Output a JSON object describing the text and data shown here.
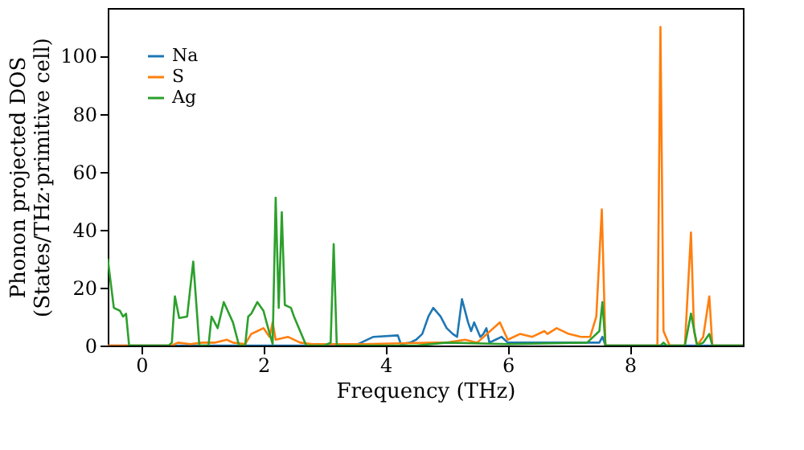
{
  "chart_data": {
    "type": "line",
    "xlabel": "Frequency (THz)",
    "ylabel": "Phonon projected DOS\n(States/THz·primitive cell)",
    "xlim": [
      -0.55,
      9.85
    ],
    "ylim": [
      0,
      116.5
    ],
    "xticks": [
      0,
      2,
      4,
      6,
      8
    ],
    "yticks": [
      0,
      20,
      40,
      60,
      80,
      100
    ],
    "grid": false,
    "legend": "top left",
    "marker": "none",
    "line_style": "solid",
    "series": [
      {
        "name": "Na",
        "color": "#1f77b4",
        "x": [
          -0.55,
          3.5,
          3.6,
          3.8,
          4.2,
          4.25,
          4.4,
          4.5,
          4.6,
          4.7,
          4.78,
          4.9,
          5.0,
          5.1,
          5.17,
          5.25,
          5.35,
          5.4,
          5.45,
          5.55,
          5.6,
          5.65,
          5.7,
          5.8,
          5.9,
          6.0,
          7.4,
          7.5,
          7.55,
          7.6,
          9.85
        ],
        "values": [
          0,
          0,
          1,
          3,
          3.5,
          0.5,
          1,
          2,
          4,
          10,
          13,
          10,
          6,
          4,
          3,
          16,
          8,
          5,
          8,
          3,
          4,
          6,
          1,
          2,
          3,
          1,
          1,
          1,
          3,
          0,
          0
        ]
      },
      {
        "name": "S",
        "color": "#ff7f0e",
        "x": [
          -0.55,
          0.5,
          0.6,
          0.8,
          1.0,
          1.2,
          1.4,
          1.5,
          1.7,
          1.8,
          1.9,
          2.0,
          2.1,
          2.15,
          2.2,
          2.4,
          2.6,
          2.8,
          3.6,
          4.8,
          5.0,
          5.3,
          5.5,
          5.87,
          6.0,
          6.2,
          6.4,
          6.6,
          6.65,
          6.8,
          7.0,
          7.2,
          7.35,
          7.45,
          7.54,
          7.6,
          8.45,
          8.5,
          8.55,
          8.65,
          8.9,
          9.0,
          9.05,
          9.1,
          9.2,
          9.3,
          9.35,
          9.85
        ],
        "values": [
          0,
          0,
          1,
          0.5,
          1,
          1,
          2,
          1,
          0.5,
          4,
          5,
          6,
          3,
          8,
          2,
          3,
          1,
          0.5,
          0.5,
          1,
          1,
          2,
          1,
          8,
          2,
          4,
          3,
          5,
          4,
          6,
          4,
          3,
          3,
          10,
          47,
          0,
          0,
          110,
          5,
          0,
          0,
          39,
          5,
          0,
          3,
          17,
          0,
          0
        ]
      },
      {
        "name": "Ag",
        "color": "#2ca02c",
        "x": [
          -0.55,
          -0.45,
          -0.35,
          -0.3,
          -0.25,
          -0.2,
          0.45,
          0.5,
          0.55,
          0.62,
          0.75,
          0.85,
          0.95,
          1.1,
          1.15,
          1.25,
          1.35,
          1.5,
          1.6,
          1.7,
          1.75,
          1.8,
          1.9,
          2.0,
          2.05,
          2.15,
          2.2,
          2.25,
          2.3,
          2.35,
          2.45,
          2.5,
          2.6,
          2.7,
          3.0,
          3.1,
          3.15,
          3.2,
          4.5,
          5.0,
          6.0,
          7.3,
          7.5,
          7.55,
          7.6,
          8.5,
          8.55,
          8.6,
          8.9,
          9.0,
          9.1,
          9.2,
          9.3,
          9.35,
          9.85
        ],
        "values": [
          30,
          13,
          12,
          10,
          11,
          0,
          0,
          1,
          17,
          9.5,
          10,
          29,
          0,
          0,
          10,
          6,
          15,
          8,
          0,
          0,
          10,
          11,
          15,
          12,
          8,
          0.5,
          51,
          13,
          46,
          14,
          13,
          10,
          5,
          0,
          0,
          1,
          35,
          0,
          0,
          1,
          0.5,
          1,
          5,
          15,
          0,
          0,
          1,
          0,
          0,
          11,
          0,
          1,
          4,
          0,
          0
        ]
      }
    ]
  }
}
